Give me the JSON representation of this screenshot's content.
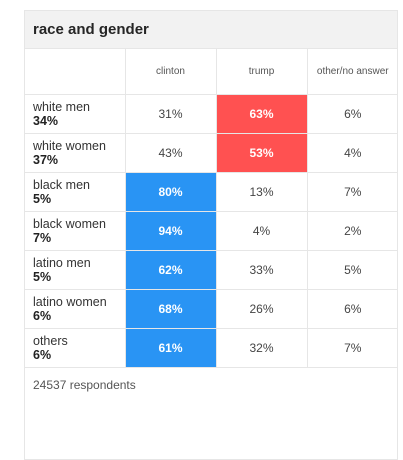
{
  "title": "race and gender",
  "columns": [
    "clinton",
    "trump",
    "other/no answer"
  ],
  "colors": {
    "clinton_win": "#2994f4",
    "trump_win": "#ff5151"
  },
  "rows": [
    {
      "group": "white men",
      "share": "34%",
      "values": [
        "31%",
        "63%",
        "6%"
      ],
      "winner": "trump"
    },
    {
      "group": "white women",
      "share": "37%",
      "values": [
        "43%",
        "53%",
        "4%"
      ],
      "winner": "trump"
    },
    {
      "group": "black men",
      "share": "5%",
      "values": [
        "80%",
        "13%",
        "7%"
      ],
      "winner": "clinton"
    },
    {
      "group": "black women",
      "share": "7%",
      "values": [
        "94%",
        "4%",
        "2%"
      ],
      "winner": "clinton"
    },
    {
      "group": "latino men",
      "share": "5%",
      "values": [
        "62%",
        "33%",
        "5%"
      ],
      "winner": "clinton"
    },
    {
      "group": "latino women",
      "share": "6%",
      "values": [
        "68%",
        "26%",
        "6%"
      ],
      "winner": "clinton"
    },
    {
      "group": "others",
      "share": "6%",
      "values": [
        "61%",
        "32%",
        "7%"
      ],
      "winner": "clinton"
    }
  ],
  "footer": "24537 respondents"
}
